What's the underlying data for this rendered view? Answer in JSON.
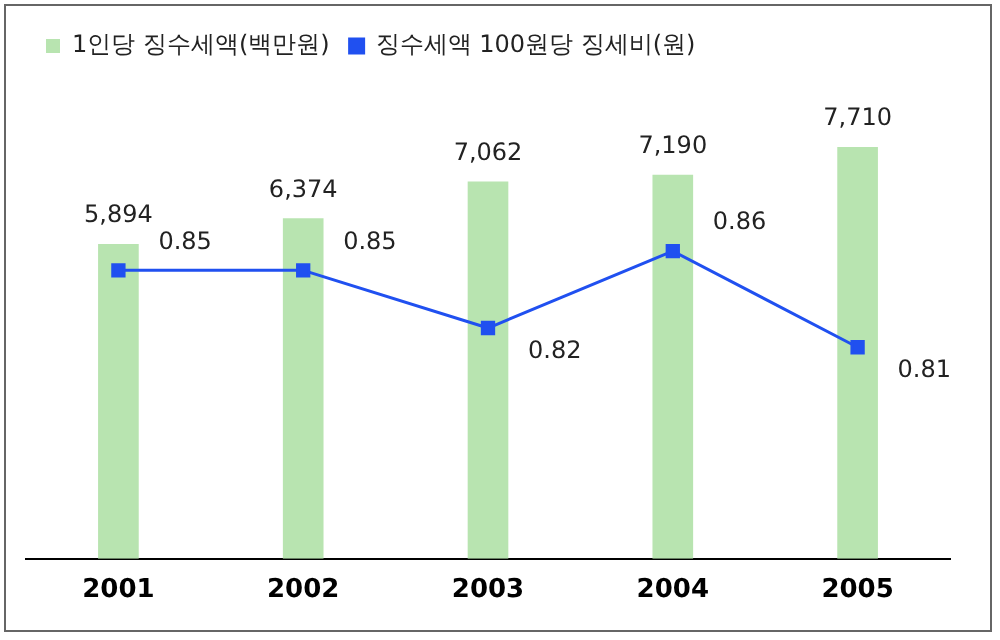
{
  "chart_data": {
    "type": "bar",
    "categories": [
      "2001",
      "2002",
      "2003",
      "2004",
      "2005"
    ],
    "series": [
      {
        "name": "1인당 징수세액(백만원)",
        "color": "#b8e4b0",
        "values": [
          5894,
          6374,
          7062,
          7190,
          7710
        ],
        "value_labels": [
          "5,894",
          "6,374",
          "7,062",
          "7,190",
          "7,710"
        ]
      },
      {
        "name": "징수세액 100원당 징세비(원)",
        "type": "line",
        "axis": "y2",
        "color": "#2050f0",
        "values": [
          0.85,
          0.85,
          0.82,
          0.86,
          0.81
        ],
        "value_labels": [
          "0.85",
          "0.85",
          "0.82",
          "0.86",
          "0.81"
        ]
      }
    ],
    "tick_labels": "x",
    "legend": "top left",
    "marker": "square",
    "grid": false
  }
}
